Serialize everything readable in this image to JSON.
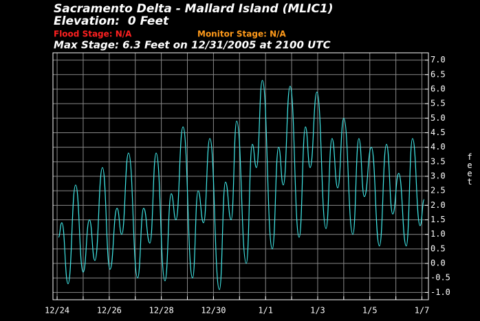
{
  "chart_data": {
    "type": "line",
    "title": "Sacramento Delta - Mallard Island (MLIC1)",
    "subtitle": "Elevation:  0 Feet",
    "flood_stage": "Flood Stage: N/A",
    "monitor_stage": "Monitor Stage: N/A",
    "max_stage": "Max Stage: 6.3 Feet on 12/31/2005 at 2100 UTC",
    "y_label": "feet",
    "grid": true,
    "color": "#40e8e8",
    "x": [
      0.05,
      0.18,
      0.42,
      0.71,
      1.0,
      1.24,
      1.45,
      1.74,
      2.03,
      2.3,
      2.48,
      2.74,
      3.09,
      3.32,
      3.56,
      3.8,
      4.14,
      4.38,
      4.56,
      4.83,
      5.2,
      5.41,
      5.62,
      5.86,
      6.23,
      6.46,
      6.68,
      6.89,
      7.26,
      7.49,
      7.65,
      7.875,
      8.26,
      8.5,
      8.68,
      8.94,
      9.29,
      9.53,
      9.71,
      9.97,
      10.32,
      10.55,
      10.77,
      11.0,
      11.35,
      11.58,
      11.79,
      12.06,
      12.37,
      12.64,
      12.88,
      13.11,
      13.4,
      13.64,
      13.93,
      14.09
    ],
    "values": [
      0.9,
      1.4,
      -0.7,
      2.7,
      -0.3,
      1.5,
      0.1,
      3.3,
      -0.2,
      1.9,
      1.0,
      3.8,
      -0.5,
      1.9,
      0.7,
      3.8,
      -0.6,
      2.4,
      1.5,
      4.7,
      -0.5,
      2.5,
      1.4,
      4.3,
      -0.9,
      2.8,
      1.5,
      4.9,
      0.0,
      4.1,
      3.3,
      6.3,
      0.5,
      4.0,
      2.7,
      6.1,
      0.9,
      4.7,
      3.3,
      5.9,
      1.2,
      4.3,
      2.6,
      5.0,
      1.0,
      4.3,
      2.3,
      4.0,
      0.6,
      4.1,
      1.7,
      3.1,
      0.6,
      4.3,
      1.3,
      2.2
    ],
    "xlim": [
      -0.16,
      14.25
    ],
    "xticks": [
      {
        "value": 0,
        "label": "12/24"
      },
      {
        "value": 1,
        "label": ""
      },
      {
        "value": 2,
        "label": "12/26"
      },
      {
        "value": 3,
        "label": ""
      },
      {
        "value": 4,
        "label": "12/28"
      },
      {
        "value": 5,
        "label": ""
      },
      {
        "value": 6,
        "label": "12/30"
      },
      {
        "value": 7,
        "label": ""
      },
      {
        "value": 8,
        "label": "1/1"
      },
      {
        "value": 9,
        "label": ""
      },
      {
        "value": 10,
        "label": "1/3"
      },
      {
        "value": 11,
        "label": ""
      },
      {
        "value": 12,
        "label": "1/5"
      },
      {
        "value": 13,
        "label": ""
      },
      {
        "value": 14,
        "label": "1/7"
      }
    ],
    "ylim": [
      -1.25,
      7.25
    ],
    "yticks": [
      {
        "value": 7,
        "label": "7.0"
      },
      6.5,
      {
        "value": 6,
        "label": "6.0"
      },
      5.5,
      {
        "value": 5,
        "label": "5.0"
      },
      4.5,
      {
        "value": 4,
        "label": "4.0"
      },
      3.5,
      {
        "value": 3,
        "label": "3.0"
      },
      2.5,
      {
        "value": 2,
        "label": "2.0"
      },
      1.5,
      {
        "value": 1,
        "label": "1.0"
      },
      0.5,
      {
        "value": 0,
        "label": "0.0"
      },
      -0.5,
      {
        "value": -1,
        "label": "-1.0"
      }
    ]
  }
}
